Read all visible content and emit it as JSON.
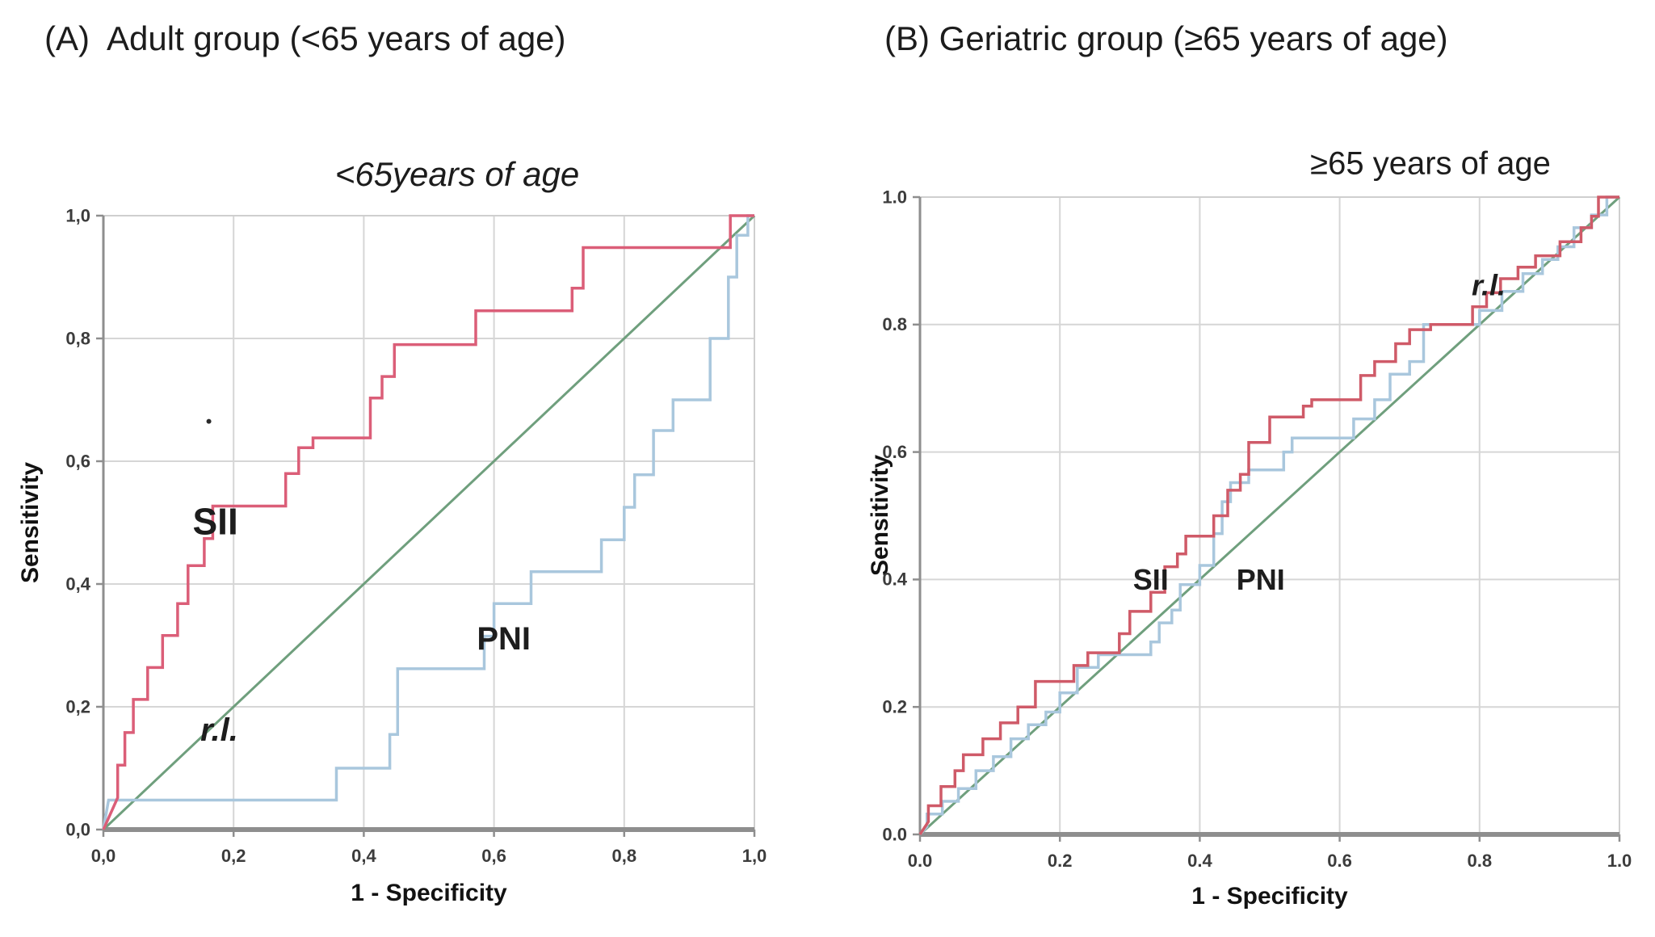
{
  "panels": [
    {
      "label": "(A)  Adult group (<65 years of age)"
    },
    {
      "label": "(B) Geriatric group (≥65 years of age)"
    }
  ],
  "colors": {
    "sii_red_adult": "#db5e78",
    "sii_red_geriatric": "#cf5a68",
    "pni_blue": "#a9c7dd",
    "reference_green": "#6f9f7d",
    "grid": "#d6d6d6",
    "frame": "#cfcfcf",
    "axis": "#8e8e8e",
    "text": "#1d1d1d"
  },
  "chart_data": [
    {
      "type": "line",
      "title": "<65years of age",
      "xlabel": "1 - Specificity",
      "ylabel": "Sensitivity",
      "xlim": [
        0,
        1
      ],
      "ylim": [
        0,
        1
      ],
      "grid": true,
      "legend_position": "none",
      "xticks": [
        "0,0",
        "0,2",
        "0,4",
        "0,6",
        "0,8",
        "1,0"
      ],
      "yticks": [
        "0,0",
        "0,2",
        "0,4",
        "0,6",
        "0,8",
        "1,0"
      ],
      "series": [
        {
          "name": "r.l.",
          "color": "#6f9f7d",
          "width": 3,
          "points": [
            [
              0,
              0
            ],
            [
              1,
              1
            ]
          ]
        },
        {
          "name": "PNI",
          "color": "#a9c7dd",
          "width": 3.5,
          "points": [
            [
              0,
              0
            ],
            [
              0.008,
              0.048
            ],
            [
              0.358,
              0.048
            ],
            [
              0.358,
              0.1
            ],
            [
              0.44,
              0.1
            ],
            [
              0.44,
              0.155
            ],
            [
              0.452,
              0.155
            ],
            [
              0.452,
              0.262
            ],
            [
              0.585,
              0.262
            ],
            [
              0.585,
              0.315
            ],
            [
              0.6,
              0.315
            ],
            [
              0.6,
              0.368
            ],
            [
              0.657,
              0.368
            ],
            [
              0.657,
              0.42
            ],
            [
              0.765,
              0.42
            ],
            [
              0.765,
              0.472
            ],
            [
              0.8,
              0.472
            ],
            [
              0.8,
              0.525
            ],
            [
              0.816,
              0.525
            ],
            [
              0.816,
              0.578
            ],
            [
              0.845,
              0.578
            ],
            [
              0.845,
              0.65
            ],
            [
              0.875,
              0.65
            ],
            [
              0.875,
              0.7
            ],
            [
              0.932,
              0.7
            ],
            [
              0.932,
              0.8
            ],
            [
              0.96,
              0.8
            ],
            [
              0.96,
              0.9
            ],
            [
              0.973,
              0.9
            ],
            [
              0.973,
              0.968
            ],
            [
              0.99,
              0.968
            ],
            [
              0.99,
              1
            ],
            [
              1,
              1
            ]
          ]
        },
        {
          "name": "SII",
          "color": "#db5e78",
          "width": 3.5,
          "points": [
            [
              0,
              0
            ],
            [
              0.022,
              0.052
            ],
            [
              0.022,
              0.105
            ],
            [
              0.033,
              0.105
            ],
            [
              0.033,
              0.158
            ],
            [
              0.046,
              0.158
            ],
            [
              0.046,
              0.212
            ],
            [
              0.068,
              0.212
            ],
            [
              0.068,
              0.264
            ],
            [
              0.091,
              0.264
            ],
            [
              0.091,
              0.316
            ],
            [
              0.114,
              0.316
            ],
            [
              0.114,
              0.368
            ],
            [
              0.13,
              0.368
            ],
            [
              0.13,
              0.43
            ],
            [
              0.155,
              0.43
            ],
            [
              0.155,
              0.474
            ],
            [
              0.168,
              0.474
            ],
            [
              0.168,
              0.527
            ],
            [
              0.28,
              0.527
            ],
            [
              0.28,
              0.58
            ],
            [
              0.3,
              0.58
            ],
            [
              0.3,
              0.622
            ],
            [
              0.322,
              0.622
            ],
            [
              0.322,
              0.638
            ],
            [
              0.41,
              0.638
            ],
            [
              0.41,
              0.703
            ],
            [
              0.428,
              0.703
            ],
            [
              0.428,
              0.738
            ],
            [
              0.447,
              0.738
            ],
            [
              0.447,
              0.79
            ],
            [
              0.572,
              0.79
            ],
            [
              0.572,
              0.845
            ],
            [
              0.72,
              0.845
            ],
            [
              0.72,
              0.882
            ],
            [
              0.737,
              0.882
            ],
            [
              0.737,
              0.948
            ],
            [
              0.963,
              0.948
            ],
            [
              0.963,
              1
            ],
            [
              1,
              1
            ]
          ]
        }
      ],
      "annotations": [
        {
          "text": "SII",
          "x": 0.172,
          "y": 0.502,
          "size": 46,
          "weight": 700
        },
        {
          "text": "PNI",
          "x": 0.615,
          "y": 0.312,
          "size": 40,
          "weight": 700
        },
        {
          "text": "r.l.",
          "x": 0.178,
          "y": 0.163,
          "size": 40,
          "weight": 700,
          "italic": true
        },
        {
          "type": "dot",
          "x": 0.162,
          "y": 0.665
        }
      ]
    },
    {
      "type": "line",
      "title": "≥65 years of age",
      "xlabel": "1 - Specificity",
      "ylabel": "Sensitivity",
      "xlim": [
        0,
        1
      ],
      "ylim": [
        0,
        1
      ],
      "grid": true,
      "legend_position": "none",
      "xticks": [
        "0.0",
        "0.2",
        "0.4",
        "0.6",
        "0.8",
        "1.0"
      ],
      "yticks": [
        "0.0",
        "0.2",
        "0.4",
        "0.6",
        "0.8",
        "1.0"
      ],
      "series": [
        {
          "name": "r.l.",
          "color": "#6f9f7d",
          "width": 3,
          "points": [
            [
              0,
              0
            ],
            [
              1,
              1
            ]
          ]
        },
        {
          "name": "PNI",
          "color": "#a9c7dd",
          "width": 3.5,
          "points": [
            [
              0,
              0
            ],
            [
              0.01,
              0.012
            ],
            [
              0.01,
              0.032
            ],
            [
              0.032,
              0.032
            ],
            [
              0.032,
              0.052
            ],
            [
              0.055,
              0.052
            ],
            [
              0.055,
              0.072
            ],
            [
              0.08,
              0.072
            ],
            [
              0.08,
              0.1
            ],
            [
              0.105,
              0.1
            ],
            [
              0.105,
              0.122
            ],
            [
              0.13,
              0.122
            ],
            [
              0.13,
              0.15
            ],
            [
              0.155,
              0.15
            ],
            [
              0.155,
              0.172
            ],
            [
              0.18,
              0.172
            ],
            [
              0.18,
              0.192
            ],
            [
              0.2,
              0.192
            ],
            [
              0.2,
              0.222
            ],
            [
              0.225,
              0.222
            ],
            [
              0.225,
              0.262
            ],
            [
              0.255,
              0.262
            ],
            [
              0.255,
              0.282
            ],
            [
              0.33,
              0.282
            ],
            [
              0.33,
              0.302
            ],
            [
              0.342,
              0.302
            ],
            [
              0.342,
              0.332
            ],
            [
              0.36,
              0.332
            ],
            [
              0.36,
              0.352
            ],
            [
              0.372,
              0.352
            ],
            [
              0.372,
              0.392
            ],
            [
              0.4,
              0.392
            ],
            [
              0.4,
              0.422
            ],
            [
              0.42,
              0.422
            ],
            [
              0.42,
              0.472
            ],
            [
              0.432,
              0.472
            ],
            [
              0.432,
              0.522
            ],
            [
              0.444,
              0.522
            ],
            [
              0.444,
              0.552
            ],
            [
              0.47,
              0.552
            ],
            [
              0.47,
              0.572
            ],
            [
              0.52,
              0.572
            ],
            [
              0.52,
              0.6
            ],
            [
              0.532,
              0.6
            ],
            [
              0.532,
              0.622
            ],
            [
              0.62,
              0.622
            ],
            [
              0.62,
              0.652
            ],
            [
              0.65,
              0.652
            ],
            [
              0.65,
              0.682
            ],
            [
              0.672,
              0.682
            ],
            [
              0.672,
              0.722
            ],
            [
              0.7,
              0.722
            ],
            [
              0.7,
              0.742
            ],
            [
              0.72,
              0.742
            ],
            [
              0.72,
              0.8
            ],
            [
              0.8,
              0.8
            ],
            [
              0.8,
              0.822
            ],
            [
              0.832,
              0.822
            ],
            [
              0.832,
              0.852
            ],
            [
              0.862,
              0.852
            ],
            [
              0.862,
              0.88
            ],
            [
              0.89,
              0.88
            ],
            [
              0.89,
              0.902
            ],
            [
              0.912,
              0.902
            ],
            [
              0.912,
              0.922
            ],
            [
              0.935,
              0.922
            ],
            [
              0.935,
              0.952
            ],
            [
              0.96,
              0.952
            ],
            [
              0.96,
              0.972
            ],
            [
              0.982,
              0.972
            ],
            [
              0.982,
              1
            ],
            [
              1,
              1
            ]
          ]
        },
        {
          "name": "SII",
          "color": "#cf5a68",
          "width": 3.5,
          "points": [
            [
              0,
              0
            ],
            [
              0.012,
              0.02
            ],
            [
              0.012,
              0.045
            ],
            [
              0.03,
              0.045
            ],
            [
              0.03,
              0.075
            ],
            [
              0.05,
              0.075
            ],
            [
              0.05,
              0.1
            ],
            [
              0.062,
              0.1
            ],
            [
              0.062,
              0.125
            ],
            [
              0.09,
              0.125
            ],
            [
              0.09,
              0.15
            ],
            [
              0.115,
              0.15
            ],
            [
              0.115,
              0.175
            ],
            [
              0.14,
              0.175
            ],
            [
              0.14,
              0.2
            ],
            [
              0.165,
              0.2
            ],
            [
              0.165,
              0.24
            ],
            [
              0.22,
              0.24
            ],
            [
              0.22,
              0.265
            ],
            [
              0.24,
              0.265
            ],
            [
              0.24,
              0.285
            ],
            [
              0.285,
              0.285
            ],
            [
              0.285,
              0.315
            ],
            [
              0.3,
              0.315
            ],
            [
              0.3,
              0.35
            ],
            [
              0.33,
              0.35
            ],
            [
              0.33,
              0.38
            ],
            [
              0.35,
              0.38
            ],
            [
              0.35,
              0.42
            ],
            [
              0.368,
              0.42
            ],
            [
              0.368,
              0.44
            ],
            [
              0.38,
              0.44
            ],
            [
              0.38,
              0.468
            ],
            [
              0.42,
              0.468
            ],
            [
              0.42,
              0.5
            ],
            [
              0.44,
              0.5
            ],
            [
              0.44,
              0.54
            ],
            [
              0.458,
              0.54
            ],
            [
              0.458,
              0.565
            ],
            [
              0.47,
              0.565
            ],
            [
              0.47,
              0.615
            ],
            [
              0.5,
              0.615
            ],
            [
              0.5,
              0.655
            ],
            [
              0.548,
              0.655
            ],
            [
              0.548,
              0.672
            ],
            [
              0.56,
              0.672
            ],
            [
              0.56,
              0.682
            ],
            [
              0.63,
              0.682
            ],
            [
              0.63,
              0.72
            ],
            [
              0.65,
              0.72
            ],
            [
              0.65,
              0.742
            ],
            [
              0.68,
              0.742
            ],
            [
              0.68,
              0.77
            ],
            [
              0.7,
              0.77
            ],
            [
              0.7,
              0.792
            ],
            [
              0.73,
              0.792
            ],
            [
              0.73,
              0.8
            ],
            [
              0.79,
              0.8
            ],
            [
              0.79,
              0.828
            ],
            [
              0.81,
              0.828
            ],
            [
              0.81,
              0.85
            ],
            [
              0.83,
              0.85
            ],
            [
              0.83,
              0.872
            ],
            [
              0.855,
              0.872
            ],
            [
              0.855,
              0.89
            ],
            [
              0.88,
              0.89
            ],
            [
              0.88,
              0.908
            ],
            [
              0.915,
              0.908
            ],
            [
              0.915,
              0.93
            ],
            [
              0.945,
              0.93
            ],
            [
              0.945,
              0.952
            ],
            [
              0.96,
              0.952
            ],
            [
              0.96,
              0.97
            ],
            [
              0.97,
              0.97
            ],
            [
              0.97,
              1
            ],
            [
              1,
              1
            ]
          ]
        }
      ],
      "annotations": [
        {
          "text": "SII",
          "x": 0.33,
          "y": 0.4,
          "size": 36,
          "weight": 700
        },
        {
          "text": "PNI",
          "x": 0.487,
          "y": 0.4,
          "size": 36,
          "weight": 700
        },
        {
          "text": "r.l.",
          "x": 0.813,
          "y": 0.862,
          "size": 36,
          "weight": 700,
          "italic": true
        }
      ]
    }
  ]
}
